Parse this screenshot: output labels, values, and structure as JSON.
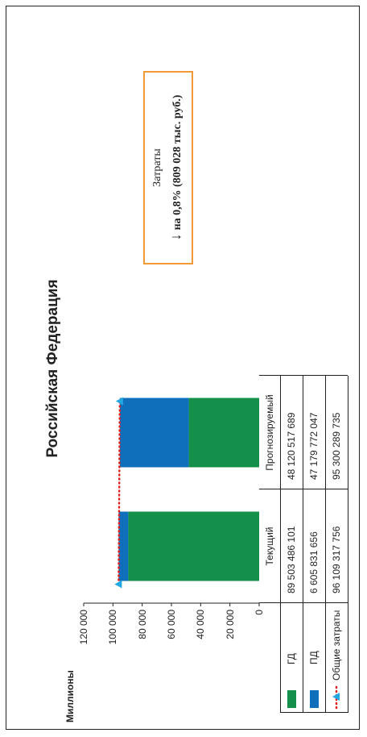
{
  "chart_data": {
    "type": "bar",
    "title": "Российская Федерация",
    "ylabel": "Миллионы",
    "ylim": [
      0,
      120000
    ],
    "yticks": [
      "0",
      "20 000",
      "40 000",
      "60 000",
      "80 000",
      "100 000",
      "120 000"
    ],
    "categories": [
      "Текущий",
      "Прогнозируемый"
    ],
    "stacked": true,
    "series": [
      {
        "name": "ГД",
        "values": [
          89503.486101,
          48120.517689
        ],
        "color": "#14904a"
      },
      {
        "name": "ПД",
        "values": [
          6605.831656,
          47179.772047
        ],
        "color": "#0f6fbb"
      }
    ],
    "total_series": {
      "name": "Общие затраты",
      "values": [
        96109.317756,
        95300.289735
      ],
      "color": "#e02020",
      "marker_color": "#22a8e0"
    },
    "table": {
      "rows": [
        {
          "label": "ГД",
          "values": [
            "89 503 486 101",
            "48 120 517 689"
          ]
        },
        {
          "label": "ПД",
          "values": [
            "6 605 831 656",
            "47 179 772 047"
          ]
        },
        {
          "label": "Общие затраты",
          "values": [
            "96 109 317 756",
            "95 300 289 735"
          ]
        }
      ]
    },
    "callout": {
      "line1": "Затраты",
      "arrow": "↓",
      "line2": "на 0,8% (809 028 тыс. руб.)",
      "border_color": "#f29a3a"
    }
  }
}
